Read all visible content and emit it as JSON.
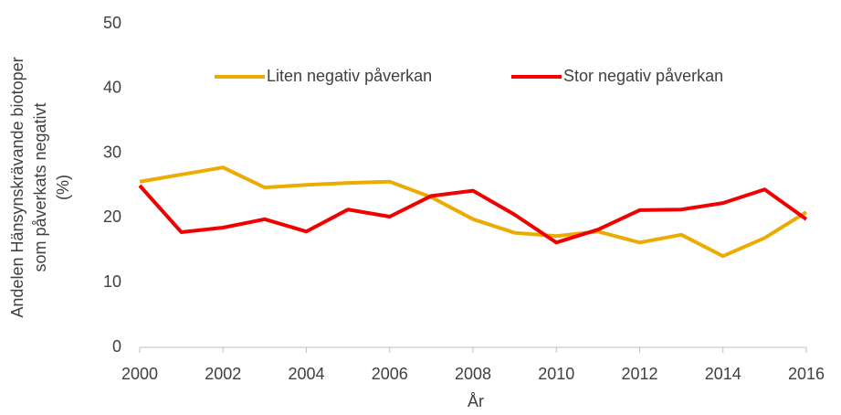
{
  "chart_data": {
    "type": "line",
    "x": [
      2000,
      2001,
      2002,
      2003,
      2004,
      2005,
      2006,
      2007,
      2008,
      2009,
      2010,
      2011,
      2012,
      2013,
      2014,
      2015,
      2016
    ],
    "series": [
      {
        "name": "Liten negativ påverkan",
        "color": "#ebab00",
        "values": [
          25.6,
          26.7,
          27.8,
          24.7,
          25.1,
          25.4,
          25.6,
          23.2,
          19.8,
          17.7,
          17.2,
          17.9,
          16.2,
          17.4,
          14.1,
          16.9,
          20.9
        ]
      },
      {
        "name": "Stor negativ påverkan",
        "color": "#f00000",
        "values": [
          25.0,
          17.8,
          18.5,
          19.8,
          17.9,
          21.3,
          20.2,
          23.4,
          24.2,
          20.5,
          16.2,
          18.2,
          21.2,
          21.3,
          22.3,
          24.4,
          19.8
        ]
      }
    ],
    "xlabel": "År",
    "ylabel": [
      "Andelen Hänsynskrävande biotoper",
      "som påverkats negativt",
      "(%)"
    ],
    "xlim": [
      2000,
      2016
    ],
    "xticks": [
      2000,
      2002,
      2004,
      2006,
      2008,
      2010,
      2012,
      2014,
      2016
    ],
    "ylim": [
      0,
      50
    ],
    "yticks": [
      0,
      10,
      20,
      30,
      40,
      50
    ],
    "legend": "top"
  }
}
